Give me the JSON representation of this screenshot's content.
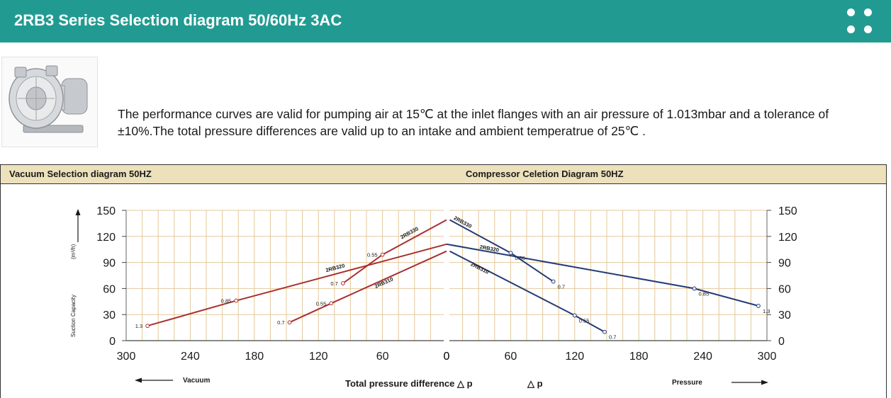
{
  "header": {
    "title": "2RB3 Series Selection diagram 50/60Hz 3AC"
  },
  "description": "The performance curves are valid for pumping air at 15℃ at the inlet flanges with an air pressure of 1.013mbar and a tolerance of ±10%.The total pressure differences are valid up to an intake and ambient temperatrue of 25℃ .",
  "panels": {
    "vacuum_title": "Vacuum Selection diagram 50HZ",
    "compressor_title": "Compressor Celetion Diagram 50HZ"
  },
  "icons": {
    "product": "ring-blower-icon",
    "menu": "dots-menu-icon"
  },
  "colors": {
    "banner": "#219b92",
    "panel_header": "#ede1bc",
    "vacuum_curve": "#a8302f",
    "pressure_curve": "#233b78",
    "grid": "#e4c89a"
  },
  "chart_data": [
    {
      "type": "line",
      "title": "Vacuum Selection diagram 50HZ",
      "xlabel": "Vacuum",
      "ylabel": "Suction Capacity",
      "yunit": "(m³/h)",
      "xlim": [
        300,
        0
      ],
      "ylim": [
        0,
        150
      ],
      "x_ticks": [
        300,
        240,
        180,
        120,
        60,
        0
      ],
      "y_ticks": [
        0,
        30,
        60,
        90,
        120,
        150
      ],
      "grid": true,
      "series": [
        {
          "name": "2RB330",
          "x": [
            97,
            60,
            0
          ],
          "y": [
            66,
            99,
            139
          ],
          "markers": [
            {
              "x": 97,
              "y": 66,
              "label": "0.7"
            },
            {
              "x": 60,
              "y": 99,
              "label": "0.55"
            }
          ]
        },
        {
          "name": "2RB320",
          "x": [
            280,
            197,
            0
          ],
          "y": [
            17,
            46,
            111
          ],
          "markers": [
            {
              "x": 280,
              "y": 17,
              "label": "1.3"
            },
            {
              "x": 197,
              "y": 46,
              "label": "0.85"
            }
          ]
        },
        {
          "name": "2RB310",
          "x": [
            147,
            108,
            0
          ],
          "y": [
            21,
            43,
            103
          ],
          "markers": [
            {
              "x": 147,
              "y": 21,
              "label": "0.7"
            },
            {
              "x": 108,
              "y": 43,
              "label": "0.55"
            }
          ]
        }
      ]
    },
    {
      "type": "line",
      "title": "Compressor Celetion Diagram 50HZ",
      "xlabel": "Pressure",
      "ylabel": "Suction Capacity",
      "xlim": [
        0,
        300
      ],
      "ylim": [
        0,
        150
      ],
      "x_ticks": [
        0,
        60,
        120,
        180,
        240,
        300
      ],
      "y_ticks": [
        0,
        30,
        60,
        90,
        120,
        150
      ],
      "grid": true,
      "series": [
        {
          "name": "2RB330",
          "x": [
            3,
            60,
            100
          ],
          "y": [
            139,
            101,
            68
          ],
          "markers": [
            {
              "x": 60,
              "y": 101,
              "label": "0.55"
            },
            {
              "x": 100,
              "y": 68,
              "label": "0.7"
            }
          ]
        },
        {
          "name": "2RB320",
          "x": [
            0,
            232,
            292
          ],
          "y": [
            111,
            60,
            40
          ],
          "markers": [
            {
              "x": 232,
              "y": 60,
              "label": "0.85"
            },
            {
              "x": 292,
              "y": 40,
              "label": "1.3"
            }
          ]
        },
        {
          "name": "2RB310",
          "x": [
            3,
            120,
            148
          ],
          "y": [
            103,
            29,
            10
          ],
          "markers": [
            {
              "x": 120,
              "y": 29,
              "label": "0.55"
            },
            {
              "x": 148,
              "y": 10,
              "label": "0.7"
            }
          ]
        }
      ]
    }
  ],
  "footer": {
    "axis_title": "Total pressure difference △ p",
    "delta_p": "△ p"
  }
}
